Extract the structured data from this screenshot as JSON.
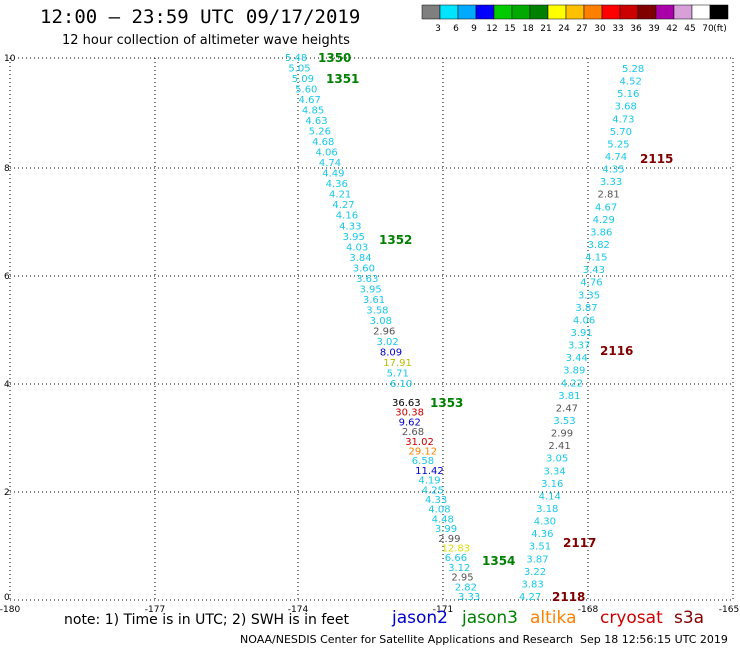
{
  "header": {
    "title": "12:00 – 23:59 UTC 09/17/2019",
    "subtitle": "12 hour collection of altimeter wave heights"
  },
  "colorbar": {
    "colors": [
      "#7f7f7f",
      "#00e5ff",
      "#00aaff",
      "#0000ff",
      "#00cc00",
      "#00aa00",
      "#008000",
      "#ffff00",
      "#ffc000",
      "#ff8000",
      "#ff0000",
      "#cc0000",
      "#800000",
      "#aa00aa",
      "#d8a0d8",
      "#ffffff",
      "#000000"
    ],
    "labels": [
      "3",
      "6",
      "9",
      "12",
      "15",
      "18",
      "21",
      "24",
      "27",
      "30",
      "33",
      "36",
      "39",
      "42",
      "45",
      "70",
      "(ft)"
    ]
  },
  "axes": {
    "x_ticks": [
      "-180",
      "-177",
      "-174",
      "-171",
      "-168",
      "-165"
    ],
    "y_ticks": [
      "0",
      "2",
      "4",
      "6",
      "8",
      "10"
    ]
  },
  "tracks": [
    {
      "id": "1350",
      "color": "#008000"
    },
    {
      "id": "1351",
      "color": "#008000"
    },
    {
      "id": "1352",
      "color": "#008000"
    },
    {
      "id": "1353",
      "color": "#008000"
    },
    {
      "id": "1354",
      "color": "#008000"
    },
    {
      "id": "2115",
      "color": "#800000"
    },
    {
      "id": "2116",
      "color": "#800000"
    },
    {
      "id": "2117",
      "color": "#800000"
    },
    {
      "id": "2118",
      "color": "#800000"
    }
  ],
  "swh_values": {
    "track_a": [
      "5.48",
      "5.05",
      "5.09",
      "5.60",
      "4.67",
      "4.85",
      "4.63",
      "5.26",
      "4.68",
      "4.06",
      "4.74",
      "4.49",
      "4.36",
      "4.21",
      "4.27",
      "4.16",
      "4.33",
      "3.95",
      "4.03",
      "3.84",
      "3.60",
      "3.63",
      "3.95",
      "3.61",
      "3.58",
      "3.08",
      "2.96",
      "3.02",
      "8.09",
      "17.91",
      "5.71",
      "6.10"
    ],
    "track_b": [
      "36.63",
      "30.38",
      "9.62",
      "2.68",
      "31.02",
      "29.12",
      "6.58",
      "11.42",
      "4.19",
      "4.25",
      "4.33",
      "4.08",
      "4.48",
      "3.99",
      "2.99",
      "12.83",
      "6.66",
      "3.12",
      "2.95",
      "2.82",
      "3.33"
    ],
    "track_c": [
      "5.28",
      "4.52",
      "5.16",
      "3.68",
      "4.73",
      "5.70",
      "5.25",
      "4.74",
      "4.35",
      "3.33",
      "2.81",
      "4.67",
      "4.29",
      "3.86",
      "3.82",
      "4.15",
      "3.43",
      "4.76",
      "3.35",
      "3.87",
      "4.06",
      "3.91",
      "3.37",
      "3.44",
      "3.89",
      "4.22",
      "3.81",
      "2.47",
      "3.53",
      "2.99",
      "2.41",
      "3.05",
      "3.34",
      "3.16",
      "4.14",
      "3.18",
      "4.30",
      "4.36",
      "3.51",
      "3.87",
      "3.22",
      "3.83",
      "4.27"
    ]
  },
  "legend": {
    "note": "note: 1) Time is in UTC; 2) SWH is in feet",
    "satellites": [
      {
        "name": "jason2",
        "color": "#0000cc"
      },
      {
        "name": "jason3",
        "color": "#008000"
      },
      {
        "name": "altika",
        "color": "#ff8000"
      },
      {
        "name": "cryosat",
        "color": "#cc0000"
      },
      {
        "name": "s3a",
        "color": "#800000"
      }
    ]
  },
  "footer": {
    "credit": "NOAA/NESDIS Center for Satellite Applications and Research",
    "timestamp": "Sep 18 12:56:15 UTC 2019"
  }
}
